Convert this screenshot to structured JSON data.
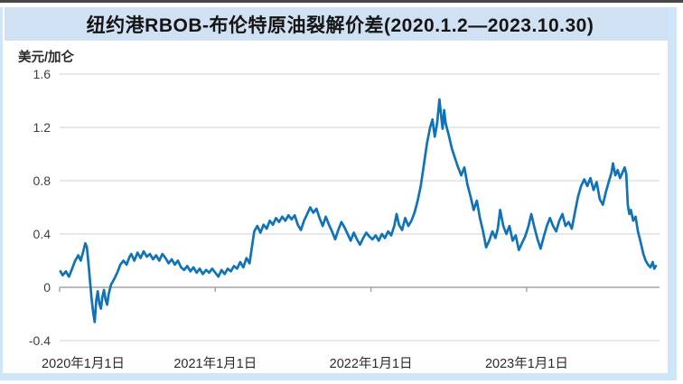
{
  "page": {
    "title": "纽约港RBOB-布伦特原油裂解价差(2020.1.2—2023.10.30)"
  },
  "colors": {
    "series_line": "#1173b7",
    "title_band_bg": "#cfe1f2",
    "page_edge": "#cfe6f9",
    "gridline": "#d9d9d9",
    "zero_axis": "#a3a3a3",
    "title_text": "#151515",
    "tick_text": "#3f3f3f"
  },
  "chart_data": {
    "type": "line",
    "title": "纽约港RBOB-布伦特原油裂解价差(2020.1.2—2023.10.30)",
    "xlabel": "",
    "ylabel": "美元/加仑",
    "ylim": [
      -0.4,
      1.6
    ],
    "y_ticks": [
      1.6,
      1.2,
      0.8,
      0.4,
      0,
      -0.4
    ],
    "y_tick_labels": [
      "1.6",
      "1.2",
      "0.8",
      "0.4",
      "0",
      "-0.4"
    ],
    "x_ticks": [
      {
        "year": 2020,
        "label": "2020年1月1日"
      },
      {
        "year": 2021,
        "label": "2021年1月1日"
      },
      {
        "year": 2022,
        "label": "2022年1月1日"
      },
      {
        "year": 2023,
        "label": "2023年1月1日"
      }
    ],
    "x_range_decimal_years": [
      2020.005,
      2023.83
    ],
    "grid": "horizontal",
    "legend_position": "none",
    "series": [
      {
        "name": "纽约港RBOB-布伦特原油裂解价差",
        "unit": "美元/加仑",
        "color": "#1173b7",
        "points": [
          [
            2020.005,
            0.12
          ],
          [
            2020.02,
            0.09
          ],
          [
            2020.04,
            0.12
          ],
          [
            2020.06,
            0.08
          ],
          [
            2020.08,
            0.14
          ],
          [
            2020.1,
            0.2
          ],
          [
            2020.12,
            0.24
          ],
          [
            2020.135,
            0.2
          ],
          [
            2020.15,
            0.26
          ],
          [
            2020.165,
            0.33
          ],
          [
            2020.175,
            0.3
          ],
          [
            2020.185,
            0.18
          ],
          [
            2020.195,
            0.05
          ],
          [
            2020.205,
            -0.08
          ],
          [
            2020.215,
            -0.18
          ],
          [
            2020.225,
            -0.26
          ],
          [
            2020.235,
            -0.1
          ],
          [
            2020.245,
            -0.03
          ],
          [
            2020.255,
            -0.12
          ],
          [
            2020.265,
            -0.16
          ],
          [
            2020.275,
            -0.07
          ],
          [
            2020.285,
            -0.02
          ],
          [
            2020.295,
            -0.09
          ],
          [
            2020.305,
            -0.13
          ],
          [
            2020.315,
            -0.05
          ],
          [
            2020.33,
            0.02
          ],
          [
            2020.35,
            0.06
          ],
          [
            2020.37,
            0.11
          ],
          [
            2020.39,
            0.17
          ],
          [
            2020.41,
            0.2
          ],
          [
            2020.43,
            0.17
          ],
          [
            2020.45,
            0.23
          ],
          [
            2020.46,
            0.25
          ],
          [
            2020.48,
            0.2
          ],
          [
            2020.5,
            0.26
          ],
          [
            2020.52,
            0.22
          ],
          [
            2020.54,
            0.27
          ],
          [
            2020.56,
            0.23
          ],
          [
            2020.58,
            0.25
          ],
          [
            2020.6,
            0.21
          ],
          [
            2020.62,
            0.24
          ],
          [
            2020.64,
            0.2
          ],
          [
            2020.66,
            0.25
          ],
          [
            2020.68,
            0.22
          ],
          [
            2020.7,
            0.18
          ],
          [
            2020.72,
            0.21
          ],
          [
            2020.74,
            0.17
          ],
          [
            2020.76,
            0.2
          ],
          [
            2020.78,
            0.15
          ],
          [
            2020.8,
            0.13
          ],
          [
            2020.82,
            0.16
          ],
          [
            2020.84,
            0.12
          ],
          [
            2020.86,
            0.15
          ],
          [
            2020.88,
            0.11
          ],
          [
            2020.9,
            0.14
          ],
          [
            2020.92,
            0.1
          ],
          [
            2020.94,
            0.13
          ],
          [
            2020.96,
            0.11
          ],
          [
            2020.98,
            0.14
          ],
          [
            2021.0,
            0.11
          ],
          [
            2021.02,
            0.08
          ],
          [
            2021.04,
            0.13
          ],
          [
            2021.06,
            0.1
          ],
          [
            2021.08,
            0.14
          ],
          [
            2021.1,
            0.12
          ],
          [
            2021.12,
            0.16
          ],
          [
            2021.14,
            0.14
          ],
          [
            2021.16,
            0.19
          ],
          [
            2021.18,
            0.15
          ],
          [
            2021.2,
            0.22
          ],
          [
            2021.22,
            0.18
          ],
          [
            2021.235,
            0.3
          ],
          [
            2021.25,
            0.42
          ],
          [
            2021.27,
            0.46
          ],
          [
            2021.29,
            0.41
          ],
          [
            2021.31,
            0.47
          ],
          [
            2021.33,
            0.44
          ],
          [
            2021.35,
            0.5
          ],
          [
            2021.37,
            0.47
          ],
          [
            2021.39,
            0.52
          ],
          [
            2021.41,
            0.49
          ],
          [
            2021.43,
            0.53
          ],
          [
            2021.45,
            0.5
          ],
          [
            2021.47,
            0.54
          ],
          [
            2021.49,
            0.51
          ],
          [
            2021.51,
            0.54
          ],
          [
            2021.53,
            0.47
          ],
          [
            2021.55,
            0.43
          ],
          [
            2021.57,
            0.5
          ],
          [
            2021.59,
            0.55
          ],
          [
            2021.61,
            0.6
          ],
          [
            2021.63,
            0.56
          ],
          [
            2021.65,
            0.59
          ],
          [
            2021.67,
            0.52
          ],
          [
            2021.69,
            0.46
          ],
          [
            2021.71,
            0.53
          ],
          [
            2021.73,
            0.47
          ],
          [
            2021.75,
            0.42
          ],
          [
            2021.77,
            0.36
          ],
          [
            2021.79,
            0.43
          ],
          [
            2021.81,
            0.49
          ],
          [
            2021.83,
            0.45
          ],
          [
            2021.85,
            0.4
          ],
          [
            2021.87,
            0.35
          ],
          [
            2021.89,
            0.41
          ],
          [
            2021.91,
            0.36
          ],
          [
            2021.93,
            0.32
          ],
          [
            2021.95,
            0.37
          ],
          [
            2021.97,
            0.41
          ],
          [
            2021.99,
            0.38
          ],
          [
            2022.01,
            0.36
          ],
          [
            2022.03,
            0.39
          ],
          [
            2022.05,
            0.35
          ],
          [
            2022.07,
            0.4
          ],
          [
            2022.09,
            0.37
          ],
          [
            2022.11,
            0.42
          ],
          [
            2022.13,
            0.39
          ],
          [
            2022.15,
            0.46
          ],
          [
            2022.165,
            0.55
          ],
          [
            2022.18,
            0.47
          ],
          [
            2022.2,
            0.43
          ],
          [
            2022.22,
            0.52
          ],
          [
            2022.24,
            0.46
          ],
          [
            2022.26,
            0.5
          ],
          [
            2022.28,
            0.56
          ],
          [
            2022.3,
            0.65
          ],
          [
            2022.32,
            0.76
          ],
          [
            2022.34,
            0.92
          ],
          [
            2022.36,
            1.08
          ],
          [
            2022.38,
            1.2
          ],
          [
            2022.395,
            1.26
          ],
          [
            2022.41,
            1.13
          ],
          [
            2022.425,
            1.23
          ],
          [
            2022.44,
            1.41
          ],
          [
            2022.45,
            1.3
          ],
          [
            2022.46,
            1.19
          ],
          [
            2022.47,
            1.33
          ],
          [
            2022.48,
            1.23
          ],
          [
            2022.5,
            1.14
          ],
          [
            2022.52,
            1.04
          ],
          [
            2022.54,
            0.97
          ],
          [
            2022.56,
            0.9
          ],
          [
            2022.58,
            0.84
          ],
          [
            2022.6,
            0.9
          ],
          [
            2022.62,
            0.77
          ],
          [
            2022.64,
            0.68
          ],
          [
            2022.66,
            0.58
          ],
          [
            2022.68,
            0.65
          ],
          [
            2022.7,
            0.52
          ],
          [
            2022.72,
            0.42
          ],
          [
            2022.74,
            0.3
          ],
          [
            2022.76,
            0.35
          ],
          [
            2022.78,
            0.42
          ],
          [
            2022.8,
            0.37
          ],
          [
            2022.815,
            0.44
          ],
          [
            2022.83,
            0.58
          ],
          [
            2022.85,
            0.46
          ],
          [
            2022.87,
            0.4
          ],
          [
            2022.89,
            0.46
          ],
          [
            2022.91,
            0.35
          ],
          [
            2022.93,
            0.39
          ],
          [
            2022.95,
            0.28
          ],
          [
            2022.97,
            0.33
          ],
          [
            2022.99,
            0.38
          ],
          [
            2023.01,
            0.45
          ],
          [
            2023.03,
            0.55
          ],
          [
            2023.05,
            0.45
          ],
          [
            2023.07,
            0.36
          ],
          [
            2023.09,
            0.29
          ],
          [
            2023.11,
            0.38
          ],
          [
            2023.13,
            0.46
          ],
          [
            2023.15,
            0.52
          ],
          [
            2023.17,
            0.46
          ],
          [
            2023.19,
            0.42
          ],
          [
            2023.21,
            0.5
          ],
          [
            2023.23,
            0.55
          ],
          [
            2023.25,
            0.46
          ],
          [
            2023.27,
            0.49
          ],
          [
            2023.29,
            0.44
          ],
          [
            2023.31,
            0.56
          ],
          [
            2023.33,
            0.68
          ],
          [
            2023.35,
            0.76
          ],
          [
            2023.37,
            0.81
          ],
          [
            2023.39,
            0.76
          ],
          [
            2023.41,
            0.82
          ],
          [
            2023.43,
            0.73
          ],
          [
            2023.45,
            0.79
          ],
          [
            2023.47,
            0.66
          ],
          [
            2023.49,
            0.62
          ],
          [
            2023.51,
            0.72
          ],
          [
            2023.53,
            0.8
          ],
          [
            2023.545,
            0.86
          ],
          [
            2023.555,
            0.93
          ],
          [
            2023.57,
            0.84
          ],
          [
            2023.585,
            0.88
          ],
          [
            2023.6,
            0.82
          ],
          [
            2023.615,
            0.86
          ],
          [
            2023.63,
            0.9
          ],
          [
            2023.64,
            0.85
          ],
          [
            2023.65,
            0.62
          ],
          [
            2023.66,
            0.55
          ],
          [
            2023.67,
            0.58
          ],
          [
            2023.685,
            0.5
          ],
          [
            2023.7,
            0.53
          ],
          [
            2023.715,
            0.42
          ],
          [
            2023.73,
            0.35
          ],
          [
            2023.75,
            0.25
          ],
          [
            2023.765,
            0.2
          ],
          [
            2023.78,
            0.17
          ],
          [
            2023.795,
            0.15
          ],
          [
            2023.81,
            0.19
          ],
          [
            2023.82,
            0.14
          ],
          [
            2023.83,
            0.16
          ]
        ]
      }
    ]
  }
}
